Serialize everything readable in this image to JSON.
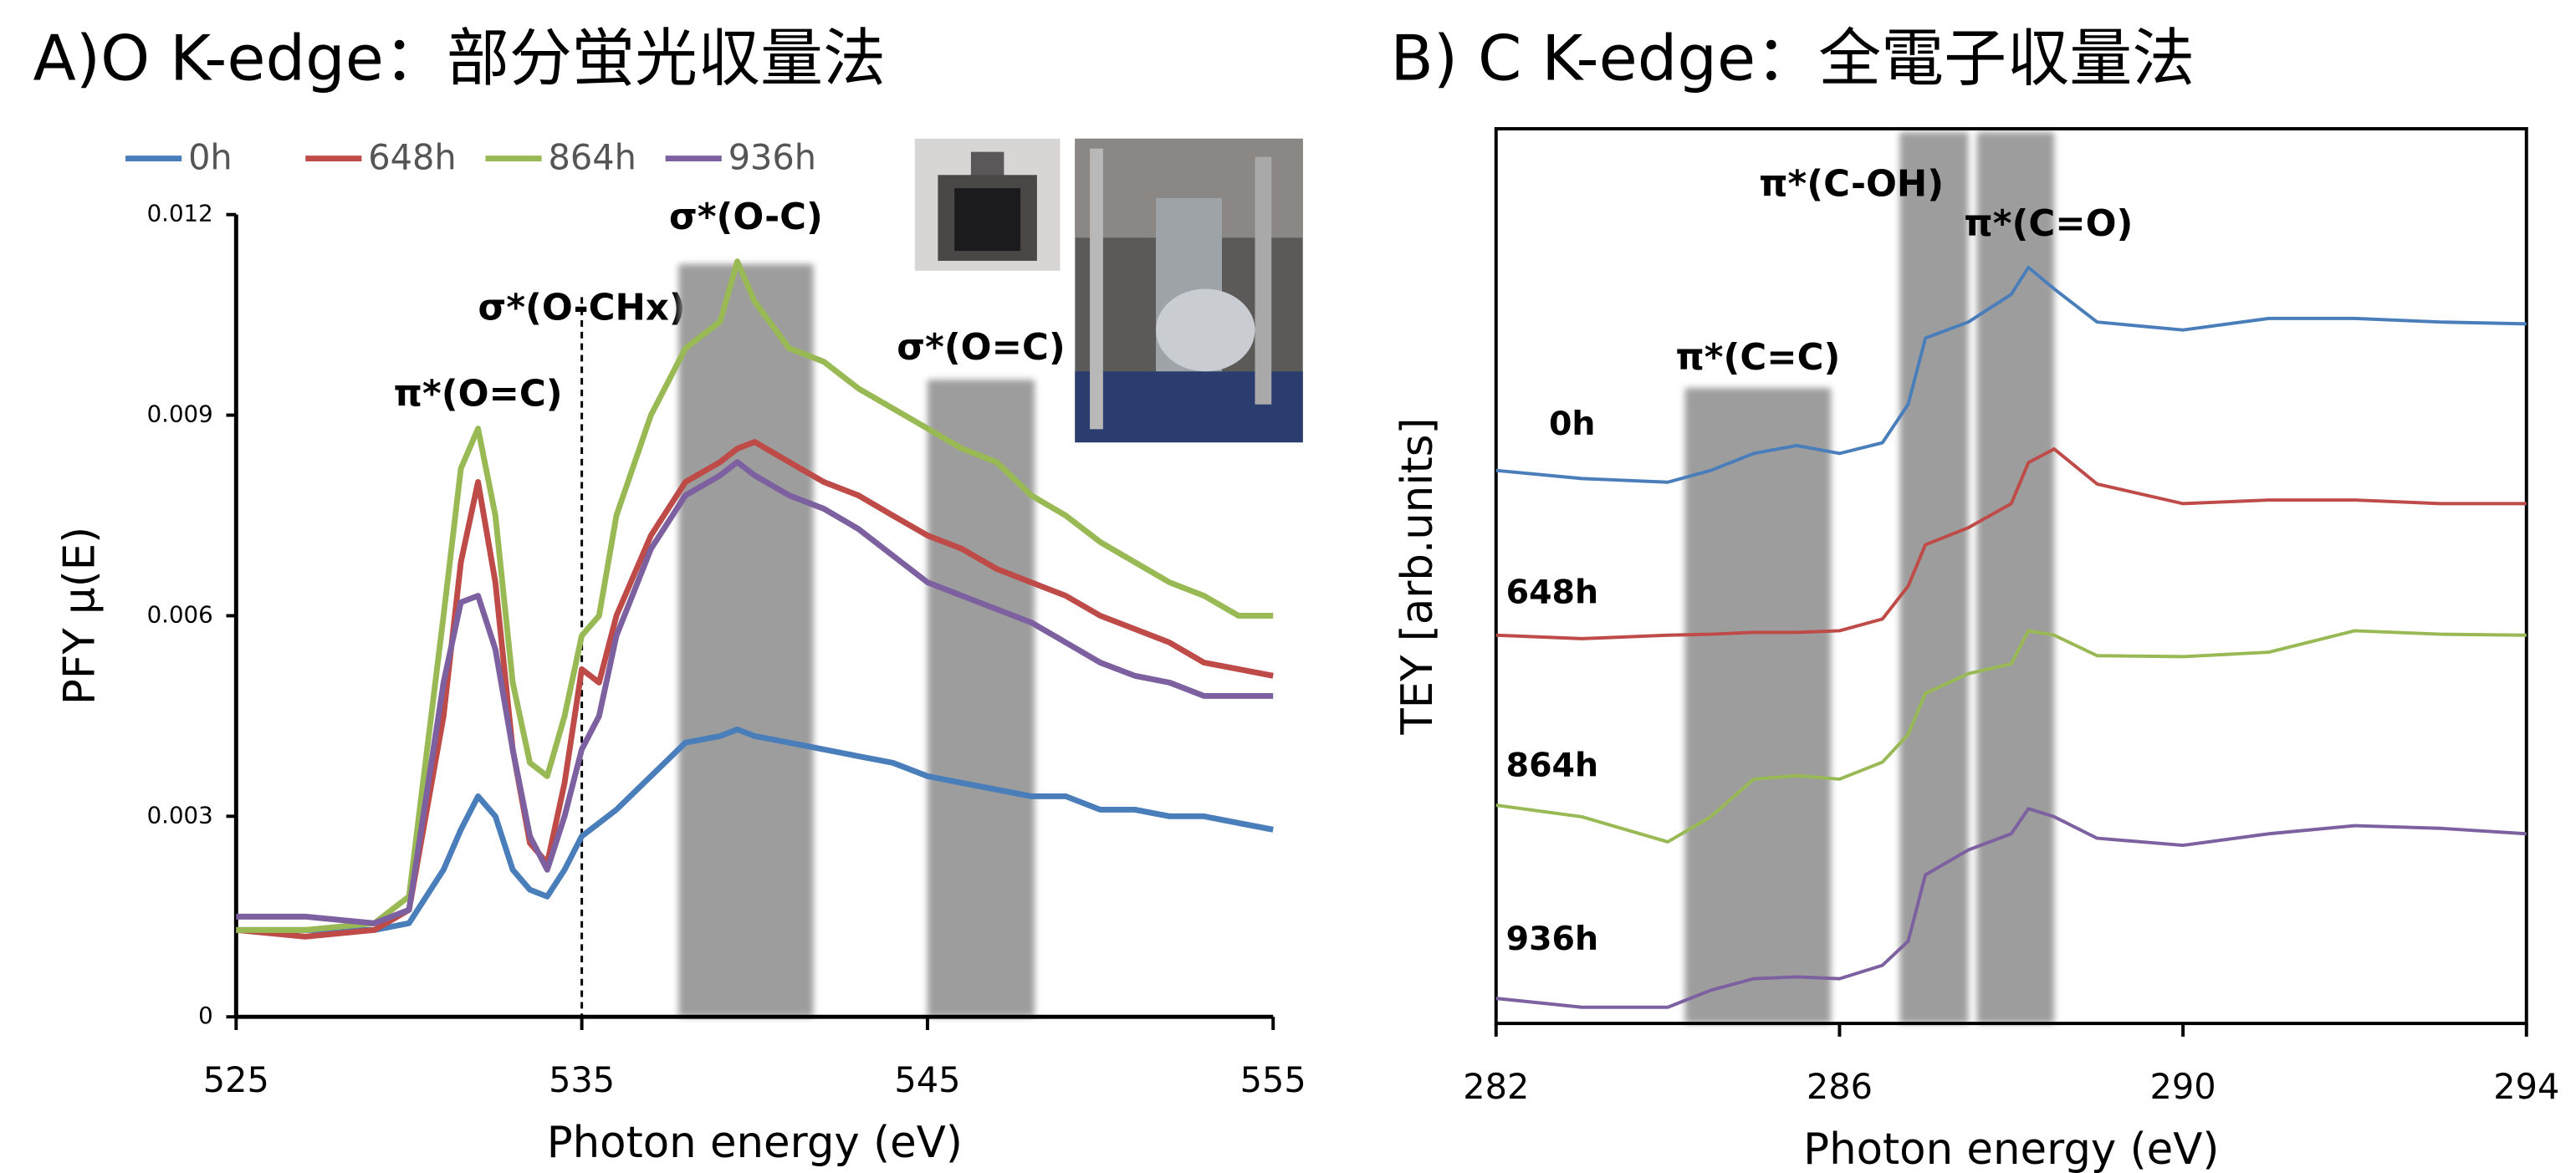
{
  "chart_data": [
    {
      "type": "line",
      "title": "A)O K-edge：部分蛍光収量法",
      "x_label": "Photon energy (eV)",
      "y_label": "PFY μ(E)",
      "xlim": [
        525,
        555
      ],
      "xticks": [
        525,
        535,
        545,
        555
      ],
      "ylim": [
        0,
        0.012
      ],
      "yticks": [
        0,
        0.003,
        0.006,
        0.009,
        0.012
      ],
      "legend": "top",
      "x": [
        525,
        527,
        529,
        530,
        531,
        531.5,
        532,
        532.5,
        533,
        533.5,
        534,
        534.5,
        535,
        535.5,
        536,
        537,
        538,
        539,
        539.5,
        540,
        541,
        542,
        543,
        544,
        545,
        546,
        547,
        548,
        549,
        550,
        551,
        552,
        553,
        554,
        555
      ],
      "series": [
        {
          "name": "0h",
          "color": "#4a7ebb",
          "values": [
            0.0013,
            0.0013,
            0.0013,
            0.0014,
            0.0022,
            0.0028,
            0.0033,
            0.003,
            0.0022,
            0.0019,
            0.0018,
            0.0022,
            0.0027,
            0.0029,
            0.0031,
            0.0036,
            0.0041,
            0.0042,
            0.0043,
            0.0042,
            0.0041,
            0.004,
            0.0039,
            0.0038,
            0.0036,
            0.0035,
            0.0034,
            0.0033,
            0.0033,
            0.0031,
            0.0031,
            0.003,
            0.003,
            0.0029,
            0.0028
          ]
        },
        {
          "name": "648h",
          "color": "#be4b48",
          "values": [
            0.0013,
            0.0012,
            0.0013,
            0.0016,
            0.0045,
            0.0068,
            0.008,
            0.0065,
            0.004,
            0.0026,
            0.0023,
            0.0035,
            0.0052,
            0.005,
            0.006,
            0.0072,
            0.008,
            0.0083,
            0.0085,
            0.0086,
            0.0083,
            0.008,
            0.0078,
            0.0075,
            0.0072,
            0.007,
            0.0067,
            0.0065,
            0.0063,
            0.006,
            0.0058,
            0.0056,
            0.0053,
            0.0052,
            0.0051
          ]
        },
        {
          "name": "864h",
          "color": "#98b954",
          "values": [
            0.0013,
            0.0013,
            0.0014,
            0.0018,
            0.006,
            0.0082,
            0.0088,
            0.0075,
            0.005,
            0.0038,
            0.0036,
            0.0045,
            0.0057,
            0.006,
            0.0075,
            0.009,
            0.01,
            0.0104,
            0.0113,
            0.0107,
            0.01,
            0.0098,
            0.0094,
            0.0091,
            0.0088,
            0.0085,
            0.0083,
            0.0078,
            0.0075,
            0.0071,
            0.0068,
            0.0065,
            0.0063,
            0.006,
            0.006
          ]
        },
        {
          "name": "936h",
          "color": "#7d60a0",
          "values": [
            0.0015,
            0.0015,
            0.0014,
            0.0016,
            0.005,
            0.0062,
            0.0063,
            0.0055,
            0.004,
            0.0027,
            0.0022,
            0.003,
            0.004,
            0.0045,
            0.0057,
            0.007,
            0.0078,
            0.0081,
            0.0083,
            0.0081,
            0.0078,
            0.0076,
            0.0073,
            0.0069,
            0.0065,
            0.0063,
            0.0061,
            0.0059,
            0.0056,
            0.0053,
            0.0051,
            0.005,
            0.0048,
            0.0048,
            0.0048
          ]
        }
      ],
      "annotations": [
        {
          "text": "π*(O=C)",
          "color": "#7030a0",
          "x": 532
        },
        {
          "text": "σ*(O-CHx)",
          "color": "#00b050",
          "x": 535
        },
        {
          "text": "σ*(O-C)",
          "color": "#00b050",
          "x": [
            537.8,
            541.7
          ]
        },
        {
          "text": "σ*(O=C)",
          "color": "#7030a0",
          "x": [
            545,
            548.1
          ]
        }
      ]
    },
    {
      "type": "line",
      "title": "B) C K-edge：全電子収量法",
      "x_label": "Photon energy (eV)",
      "y_label": "TEY [arb.units]",
      "xlim": [
        282,
        294
      ],
      "xticks": [
        282,
        286,
        290,
        294
      ],
      "ylim": [
        0,
        1
      ],
      "x": [
        282,
        283,
        284,
        284.5,
        285,
        285.5,
        286,
        286.5,
        286.8,
        287,
        287.5,
        288,
        288.2,
        288.5,
        289,
        290,
        291,
        292,
        293,
        294
      ],
      "series": [
        {
          "name": "0h",
          "color": "#4a7ebb",
          "values": [
            0.618,
            0.609,
            0.605,
            0.618,
            0.637,
            0.646,
            0.637,
            0.649,
            0.692,
            0.766,
            0.784,
            0.815,
            0.845,
            0.821,
            0.784,
            0.775,
            0.788,
            0.788,
            0.784,
            0.782
          ]
        },
        {
          "name": "648h",
          "color": "#be4b48",
          "values": [
            0.434,
            0.43,
            0.434,
            0.435,
            0.437,
            0.437,
            0.439,
            0.452,
            0.489,
            0.535,
            0.554,
            0.581,
            0.627,
            0.642,
            0.603,
            0.581,
            0.585,
            0.585,
            0.581,
            0.581
          ]
        },
        {
          "name": "864h",
          "color": "#98b954",
          "values": [
            0.244,
            0.231,
            0.203,
            0.231,
            0.273,
            0.277,
            0.273,
            0.292,
            0.323,
            0.369,
            0.391,
            0.402,
            0.439,
            0.434,
            0.411,
            0.41,
            0.415,
            0.439,
            0.435,
            0.434
          ]
        },
        {
          "name": "936h",
          "color": "#7d60a0",
          "values": [
            0.028,
            0.018,
            0.018,
            0.037,
            0.05,
            0.052,
            0.05,
            0.065,
            0.092,
            0.166,
            0.194,
            0.212,
            0.24,
            0.231,
            0.207,
            0.199,
            0.212,
            0.221,
            0.218,
            0.212
          ]
        }
      ],
      "annotations": [
        {
          "text": "π*(C=C)",
          "color": "#000000",
          "x": [
            284.2,
            285.9
          ]
        },
        {
          "text": "π*(C-OH)",
          "color": "#00b050",
          "x": [
            286.7,
            287.5
          ]
        },
        {
          "text": "π*(C=O)",
          "color": "#7030a0",
          "x": [
            287.6,
            288.5
          ]
        }
      ]
    }
  ]
}
